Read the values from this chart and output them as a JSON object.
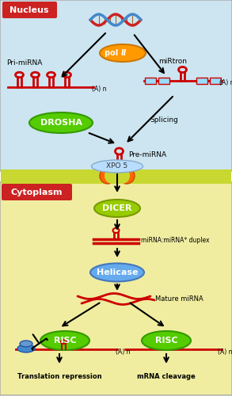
{
  "bg_nucleus": "#cce5f0",
  "bg_membrane": "#c8d830",
  "bg_cytoplasm": "#f0eda0",
  "nucleus_label": "Nucleus",
  "cytoplasm_label": "Cytoplasm",
  "pol2_label": "pol Ⅱ",
  "drosha_label": "DROSHA",
  "xpo5_label": "XPO 5",
  "dicer_label": "DICER",
  "helicase_label": "Helicase",
  "risc_label": "RISC",
  "mirna_label": "Pri-miRNA",
  "mirtron_label": "miRtron",
  "pre_mirna_label": "Pre-miRNA",
  "duplex_label": "miRNA:miRNA* duplex",
  "mature_label": "Mature miRNA",
  "splicing_label": "Splicing",
  "transl_label": "Translation repression",
  "mrna_label": "mRNA cleavage",
  "an_label": "(A) n",
  "red": "#cc0000",
  "green": "#55cc00",
  "orange": "#ff9900",
  "blue_light": "#66aaee",
  "yellow_green": "#99cc00",
  "label_red": "#cc2222",
  "dna_red": "#cc2222",
  "dna_blue": "#4488cc"
}
